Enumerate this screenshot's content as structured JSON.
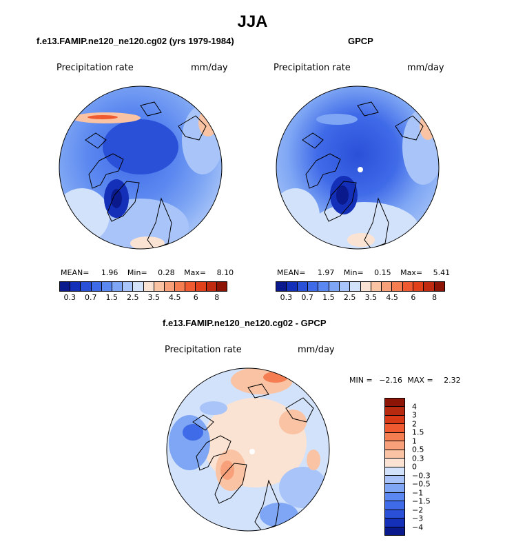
{
  "season_title": "JJA",
  "panels": [
    {
      "title": "f.e13.FAMIP.ne120_ne120.cg02 (yrs 1979-1984)",
      "variable": "Precipitation rate",
      "units": "mm/day",
      "stats": {
        "mean_label": "MEAN=",
        "mean": "1.96",
        "min_label": "Min=",
        "min": "0.28",
        "max_label": "Max=",
        "max": "8.10"
      }
    },
    {
      "title": "GPCP",
      "variable": "Precipitation rate",
      "units": "mm/day",
      "stats": {
        "mean_label": "MEAN=",
        "mean": "1.97",
        "min_label": "Min=",
        "min": "0.15",
        "max_label": "Max=",
        "max": "5.41"
      }
    },
    {
      "title": "f.e13.FAMIP.ne120_ne120.cg02 - GPCP",
      "variable": "Precipitation rate",
      "units": "mm/day",
      "stats": {
        "min_label": "MIN =",
        "min": "−2.16",
        "max_label": "MAX =",
        "max": "2.32"
      }
    }
  ],
  "colorbar_levels": [
    "0.3",
    "0.7",
    "1.5",
    "2.5",
    "3.5",
    "4.5",
    "6",
    "8"
  ],
  "colorbar_colors": [
    "#0a1a8c",
    "#1530b8",
    "#2a50d8",
    "#3f6ae8",
    "#5b88f0",
    "#7ea6f4",
    "#a8c4f8",
    "#d3e2fb",
    "#fbe3d3",
    "#f9c3a4",
    "#f7a079",
    "#f47d52",
    "#ef5a30",
    "#e0401a",
    "#c02a10",
    "#8c1508"
  ],
  "diff_levels": [
    "4",
    "3",
    "2",
    "1.5",
    "1",
    "0.5",
    "0.3",
    "0",
    "−0.3",
    "−0.5",
    "−1",
    "−1.5",
    "−2",
    "−3",
    "−4"
  ],
  "diff_colors": [
    "#8c1508",
    "#b82a10",
    "#d83a18",
    "#ef5a30",
    "#f47d52",
    "#f7a079",
    "#f9c3a4",
    "#fbe3d3",
    "#d3e2fb",
    "#a8c4f8",
    "#7ea6f4",
    "#5b88f0",
    "#3f6ae8",
    "#2a50d8",
    "#1530b8",
    "#0a1a8c"
  ]
}
